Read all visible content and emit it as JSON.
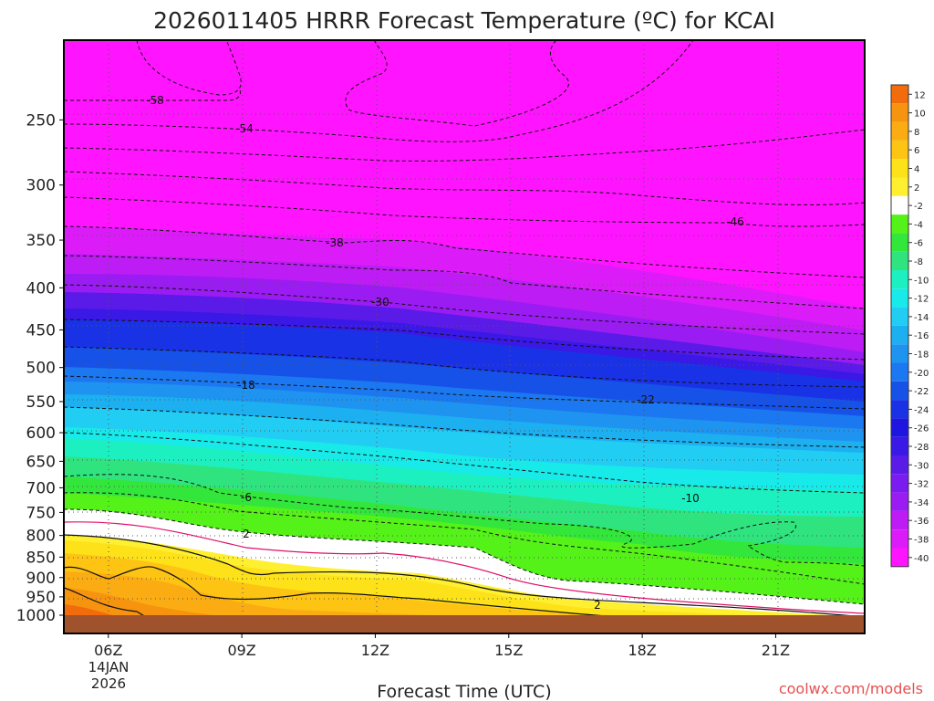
{
  "chart_data": {
    "type": "heatmap",
    "title": "2026011405 HRRR Forecast Temperature (ºC) for KCAI",
    "xlabel": "Forecast Time (UTC)",
    "ylabel": "",
    "credit": "coolwx.com/models",
    "x_ticks": [
      {
        "label": "06Z",
        "hour": 6
      },
      {
        "label": "09Z",
        "hour": 9
      },
      {
        "label": "12Z",
        "hour": 12
      },
      {
        "label": "15Z",
        "hour": 15
      },
      {
        "label": "18Z",
        "hour": 18
      },
      {
        "label": "21Z",
        "hour": 21
      }
    ],
    "date_label": [
      "14JAN",
      "2026"
    ],
    "xlim": [
      5,
      23
    ],
    "y_ticks": [
      250,
      300,
      350,
      400,
      450,
      500,
      550,
      600,
      650,
      700,
      750,
      800,
      850,
      900,
      950,
      1000
    ],
    "ylim": [
      200,
      1000
    ],
    "colorbar": {
      "labels": [
        "12",
        "10",
        "8",
        "6",
        "4",
        "2",
        "-2",
        "-4",
        "-6",
        "-8",
        "-10",
        "-12",
        "-14",
        "-16",
        "-18",
        "-20",
        "-22",
        "-24",
        "-26",
        "-28",
        "-30",
        "-32",
        "-34",
        "-36",
        "-38",
        "-40"
      ],
      "colors": [
        "#f26c0d",
        "#f7940f",
        "#fbac12",
        "#fdc414",
        "#fde119",
        "#fef030",
        "#ffffff",
        "#55f21a",
        "#33e63c",
        "#2fe47f",
        "#1cf0c0",
        "#18e9e9",
        "#22cdf4",
        "#1cb0f0",
        "#1f93f0",
        "#1c78f0",
        "#1652e8",
        "#1a32e6",
        "#1e16e0",
        "#3a18e6",
        "#5a1ae8",
        "#7a1bf0",
        "#9a1cf2",
        "#be1cf4",
        "#dc1cf8",
        "#ff14ff"
      ]
    },
    "contour_labels": [
      "-58",
      "-54",
      "-46",
      "-38",
      "-30",
      "-22",
      "-18",
      "-10",
      "-6",
      "2",
      "2"
    ],
    "ground_color": "#a0522d",
    "grid": "dotted"
  }
}
